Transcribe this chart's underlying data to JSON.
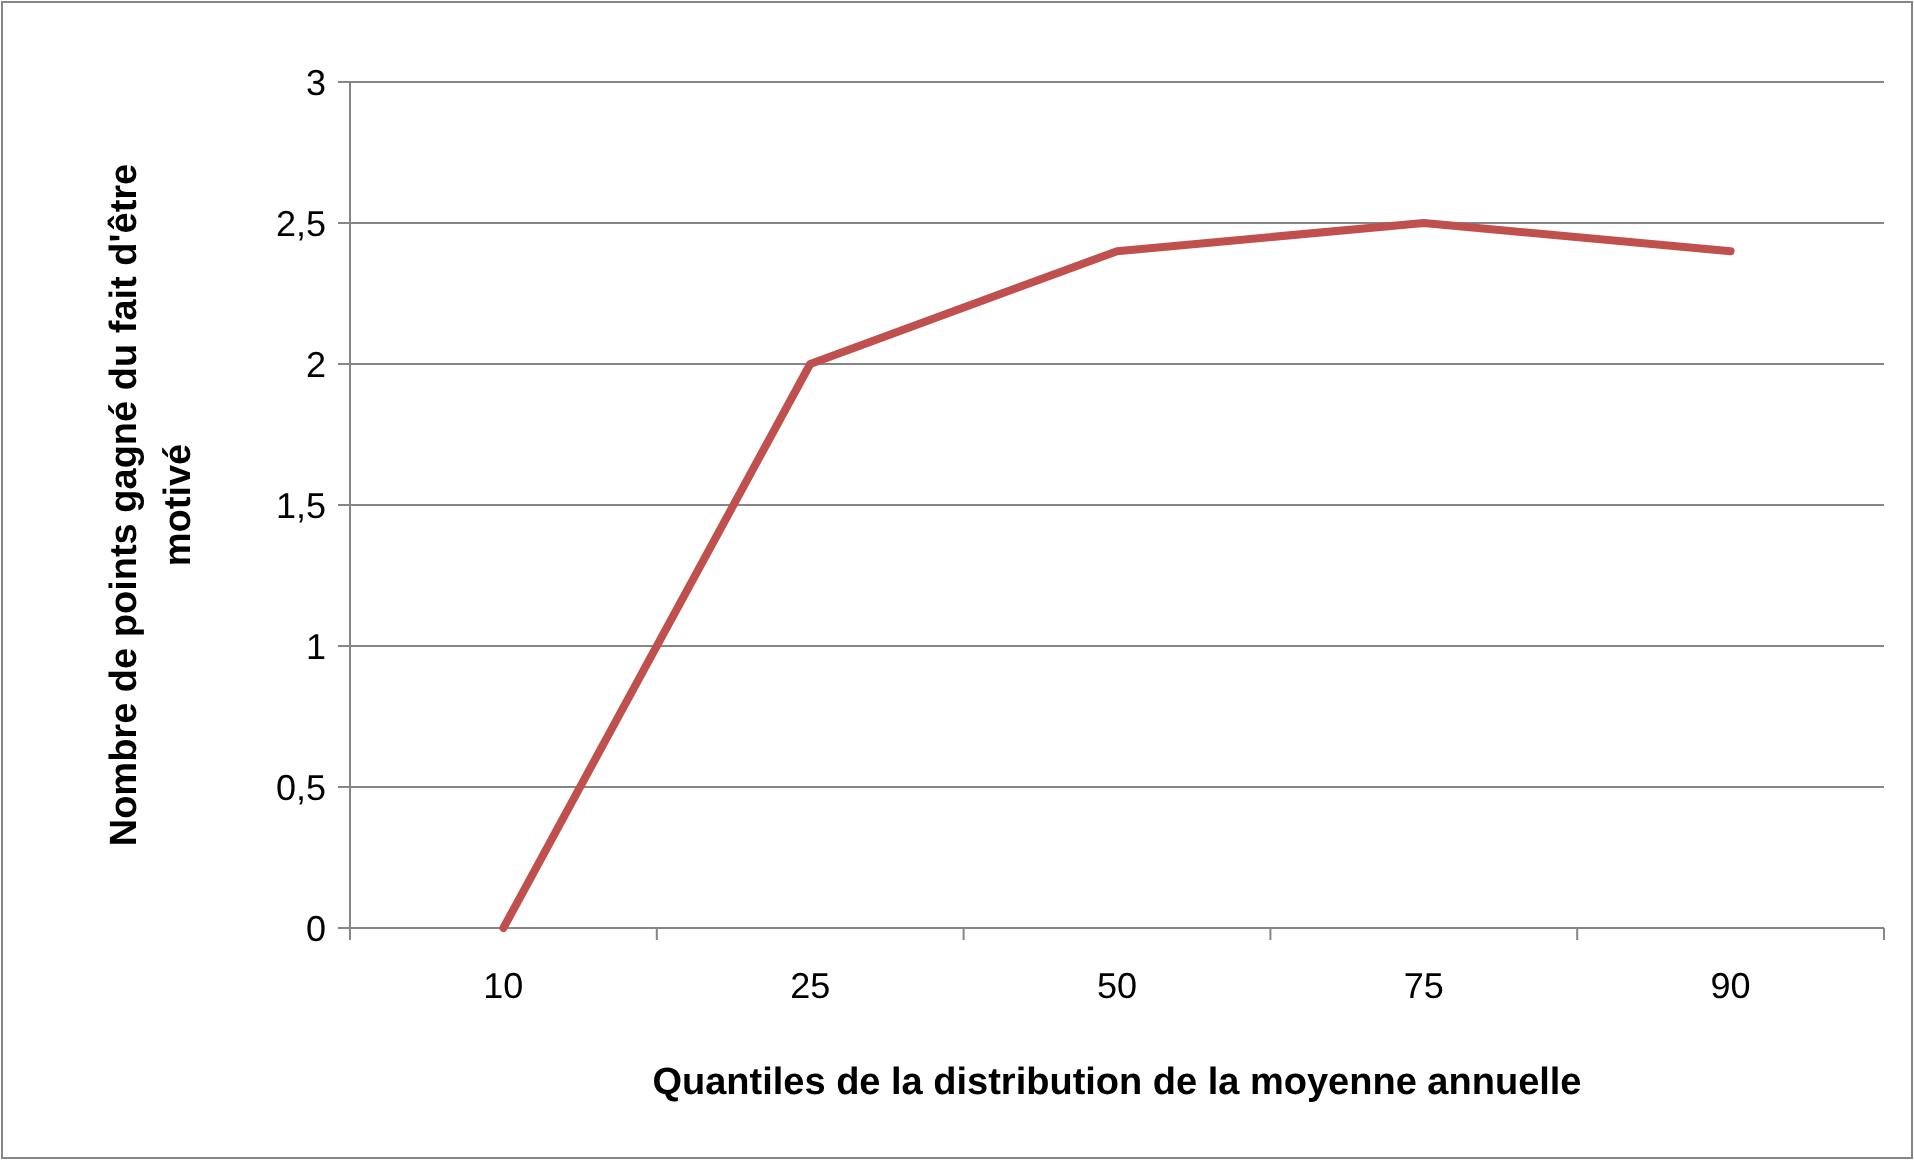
{
  "chart_data": {
    "type": "line",
    "xlabel": "Quantiles de la distribution de la moyenne annuelle",
    "ylabel": "Nombre de points gagné du fait d'être motivé",
    "categories": [
      "10",
      "25",
      "50",
      "75",
      "90"
    ],
    "series": [
      {
        "color": "#c0504d",
        "values": [
          0,
          2,
          2.4,
          2.5,
          2.4
        ]
      }
    ],
    "ylim": [
      0,
      3
    ],
    "yticks": [
      0,
      {
        "value": 0.5,
        "label": "0,5"
      },
      1,
      {
        "value": 1.5,
        "label": "1,5"
      },
      2,
      {
        "value": 2.5,
        "label": "2,5"
      },
      3
    ],
    "grid": "y",
    "marker": "none",
    "line_style": "solid"
  }
}
